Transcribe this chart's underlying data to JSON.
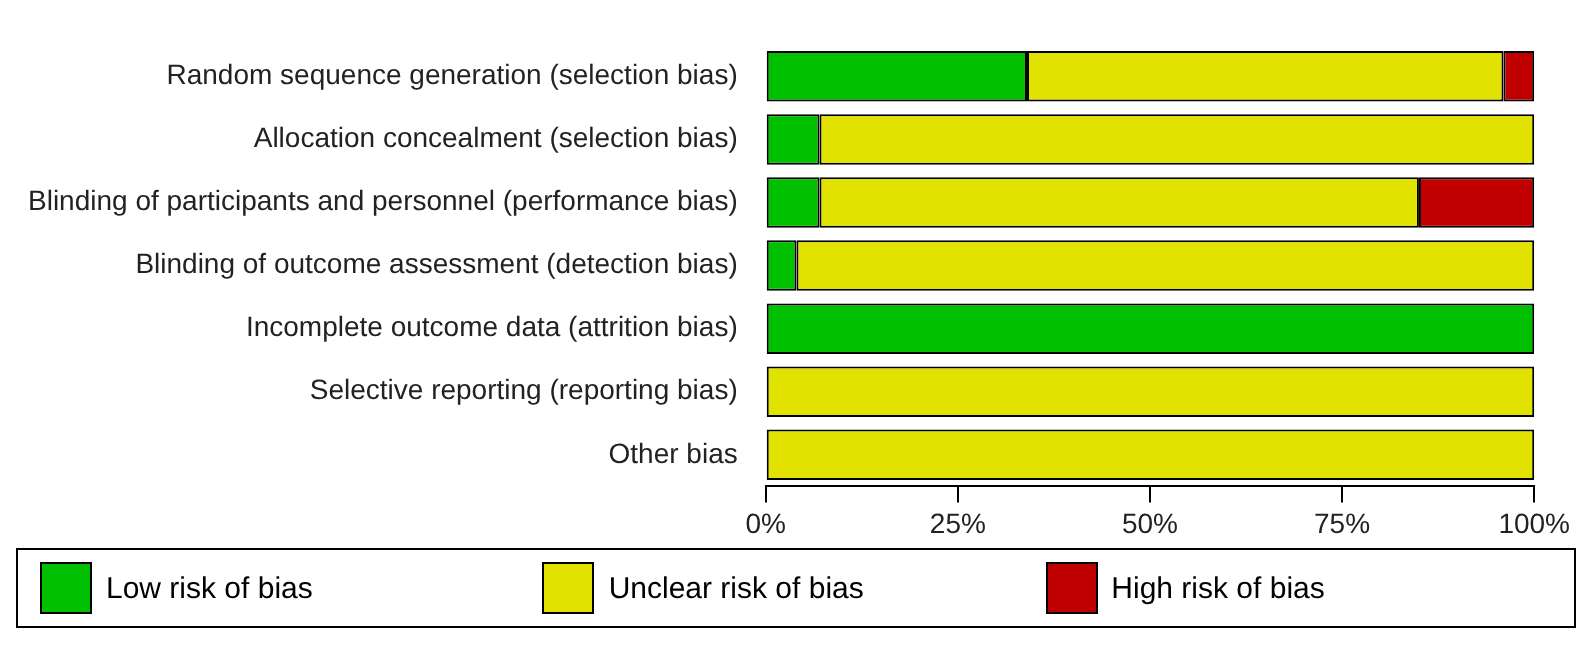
{
  "chart_data": {
    "type": "bar",
    "orientation": "horizontal",
    "stacked": true,
    "categories": [
      "Random sequence generation (selection bias)",
      "Allocation concealment (selection bias)",
      "Blinding of participants and personnel (performance bias)",
      "Blinding of outcome assessment (detection bias)",
      "Incomplete outcome data (attrition bias)",
      "Selective reporting (reporting bias)",
      "Other bias"
    ],
    "series": [
      {
        "name": "Low risk of bias",
        "color": "#00c000",
        "values": [
          34,
          7,
          7,
          4,
          100,
          0,
          0
        ]
      },
      {
        "name": "Unclear risk of bias",
        "color": "#e2e200",
        "values": [
          62,
          93,
          78,
          96,
          0,
          100,
          100
        ]
      },
      {
        "name": "High risk of bias",
        "color": "#c00000",
        "values": [
          4,
          0,
          15,
          0,
          0,
          0,
          0
        ]
      }
    ],
    "xlim": [
      0,
      100
    ],
    "xticks": [
      {
        "value": 0,
        "label": "0%"
      },
      {
        "value": 25,
        "label": "25%"
      },
      {
        "value": 50,
        "label": "50%"
      },
      {
        "value": 75,
        "label": "75%"
      },
      {
        "value": 100,
        "label": "100%"
      }
    ],
    "grid": false,
    "legend": "bottom"
  }
}
